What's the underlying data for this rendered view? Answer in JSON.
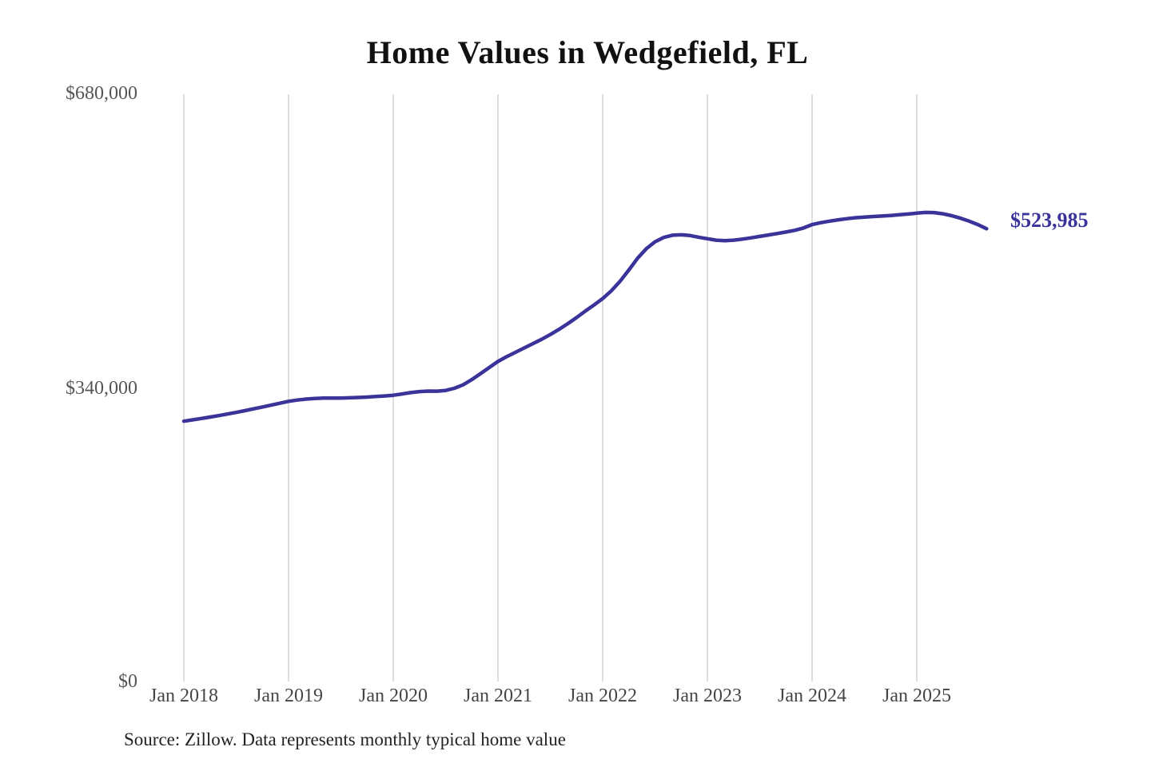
{
  "title": "Home Values in Wedgefield, FL",
  "annotation": {
    "latest_value_label": "$523,985"
  },
  "source_note": "Source: Zillow. Data represents monthly typical home value",
  "colors": {
    "line": "#3a3399",
    "annotation": "#3a3399",
    "grid": "#cccccc",
    "title": "#111111",
    "y_tick_label": "#555555",
    "x_tick_label": "#454545",
    "source": "#222222",
    "background": "#ffffff"
  },
  "y_axis": {
    "ticks": [
      {
        "label": "$680,000",
        "value": 680000
      },
      {
        "label": "$340,000",
        "value": 340000
      },
      {
        "label": "$0",
        "value": 0
      }
    ]
  },
  "chart_data": {
    "type": "line",
    "title": "Home Values in Wedgefield, FL",
    "xlabel": "",
    "ylabel": "",
    "ylim": [
      0,
      680000
    ],
    "y_tick_labels": [
      "$0",
      "$340,000",
      "$680,000"
    ],
    "x_tick_labels": [
      "Jan 2018",
      "Jan 2019",
      "Jan 2020",
      "Jan 2021",
      "Jan 2022",
      "Jan 2023",
      "Jan 2024",
      "Jan 2025"
    ],
    "grid": "vertical-only",
    "legend": "none",
    "latest_value": 523985,
    "latest_value_label": "$523,985",
    "series": [
      {
        "name": "Monthly typical home value",
        "months": [
          "2018-01",
          "2018-02",
          "2018-03",
          "2018-04",
          "2018-05",
          "2018-06",
          "2018-07",
          "2018-08",
          "2018-09",
          "2018-10",
          "2018-11",
          "2018-12",
          "2019-01",
          "2019-02",
          "2019-03",
          "2019-04",
          "2019-05",
          "2019-06",
          "2019-07",
          "2019-08",
          "2019-09",
          "2019-10",
          "2019-11",
          "2019-12",
          "2020-01",
          "2020-02",
          "2020-03",
          "2020-04",
          "2020-05",
          "2020-06",
          "2020-07",
          "2020-08",
          "2020-09",
          "2020-10",
          "2020-11",
          "2020-12",
          "2021-01",
          "2021-02",
          "2021-03",
          "2021-04",
          "2021-05",
          "2021-06",
          "2021-07",
          "2021-08",
          "2021-09",
          "2021-10",
          "2021-11",
          "2021-12",
          "2022-01",
          "2022-02",
          "2022-03",
          "2022-04",
          "2022-05",
          "2022-06",
          "2022-07",
          "2022-08",
          "2022-09",
          "2022-10",
          "2022-11",
          "2022-12",
          "2023-01",
          "2023-02",
          "2023-03",
          "2023-04",
          "2023-05",
          "2023-06",
          "2023-07",
          "2023-08",
          "2023-09",
          "2023-10",
          "2023-11",
          "2023-12",
          "2024-01",
          "2024-02",
          "2024-03",
          "2024-04",
          "2024-05",
          "2024-06",
          "2024-07",
          "2024-08",
          "2024-09",
          "2024-10",
          "2024-11",
          "2024-12",
          "2025-01",
          "2025-02",
          "2025-03",
          "2025-04",
          "2025-05",
          "2025-06",
          "2025-07",
          "2025-08",
          "2025-09"
        ],
        "values": [
          302000,
          303600,
          305200,
          306800,
          308500,
          310300,
          312200,
          314200,
          316300,
          318400,
          320600,
          322800,
          325000,
          326500,
          327600,
          328300,
          328700,
          328800,
          328800,
          329000,
          329400,
          329900,
          330500,
          331200,
          332000,
          333500,
          335000,
          336200,
          336800,
          336700,
          337500,
          340000,
          344000,
          350000,
          357000,
          364000,
          371000,
          376500,
          381500,
          386500,
          391500,
          396500,
          402000,
          408000,
          414500,
          421500,
          429000,
          436000,
          443500,
          452500,
          463500,
          476500,
          490000,
          501000,
          509000,
          514000,
          516500,
          517000,
          516200,
          514200,
          512500,
          510800,
          510200,
          510800,
          512000,
          513500,
          515200,
          516800,
          518500,
          520200,
          522200,
          524800,
          528800,
          531000,
          532800,
          534300,
          535600,
          536700,
          537500,
          538100,
          538700,
          539300,
          540100,
          541000,
          542000,
          542800,
          542600,
          541200,
          539000,
          536200,
          532800,
          528800,
          523985
        ]
      }
    ]
  }
}
